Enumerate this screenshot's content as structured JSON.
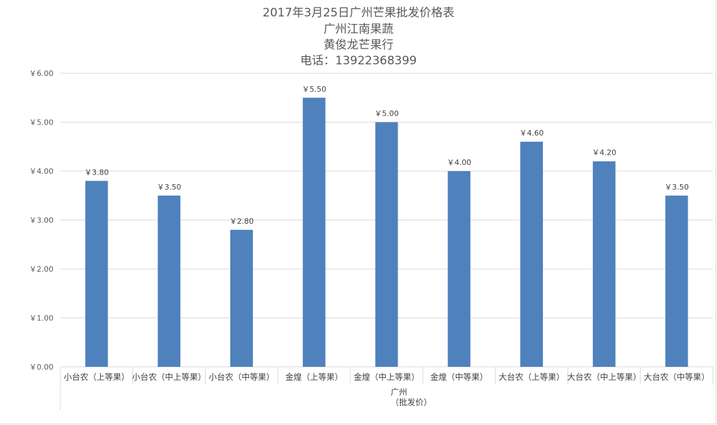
{
  "chart_data": {
    "type": "bar",
    "title": "2017年3月25日广州芒果批发价格表",
    "subtitle_lines": [
      "广州江南果蔬",
      "黄俊龙芒果行",
      "电话：13922368399"
    ],
    "categories": [
      "小台农（上等果）",
      "小台农（中上等果）",
      "小台农（中等果）",
      "金煌（上等果）",
      "金煌（中上等果）",
      "金煌（中等果）",
      "大台农（上等果）",
      "大台农（中上等果）",
      "大台农（中等果）"
    ],
    "values": [
      3.8,
      3.5,
      2.8,
      5.5,
      5.0,
      4.0,
      4.6,
      4.2,
      3.5
    ],
    "data_labels": [
      "￥3.80",
      "￥3.50",
      "￥2.80",
      "￥5.50",
      "￥5.00",
      "￥4.00",
      "￥4.60",
      "￥4.20",
      "￥3.50"
    ],
    "group_label_lines": [
      "广州",
      "（批发价）"
    ],
    "y_tick_values": [
      0,
      1,
      2,
      3,
      4,
      5,
      6
    ],
    "y_tick_labels": [
      "￥0.00",
      "￥1.00",
      "￥2.00",
      "￥3.00",
      "￥4.00",
      "￥5.00",
      "￥6.00"
    ],
    "ylim": [
      0,
      6
    ],
    "grid": true,
    "bar_color": "#4f81bd",
    "grid_color": "#d9d9d9"
  }
}
